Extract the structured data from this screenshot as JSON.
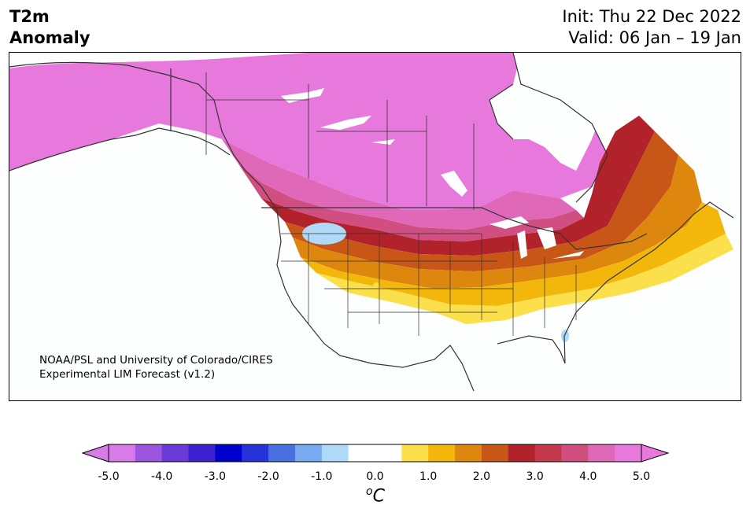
{
  "header": {
    "left_line1": "T2m",
    "left_line2": "Anomaly",
    "init": "Init: Thu 22 Dec 2022",
    "valid": "Valid: 06 Jan – 19 Jan"
  },
  "credit": {
    "line1": "NOAA/PSL and University of Colorado/CIRES",
    "line2": "Experimental LIM Forecast (v1.2)"
  },
  "colorbar": {
    "unit_base": "C",
    "unit_prefix": "o",
    "ticks": [
      "-5.0",
      "-4.0",
      "-3.0",
      "-2.0",
      "-1.0",
      "0.0",
      "1.0",
      "2.0",
      "3.0",
      "4.0",
      "5.0"
    ],
    "colors": [
      "#d77be8",
      "#9b55de",
      "#6a3ad8",
      "#3a20cf",
      "#0000cc",
      "#2633d9",
      "#4a6fe0",
      "#78aaf0",
      "#aedaf8",
      "#ffffff",
      "#ffffff",
      "#fbe04c",
      "#f2b70a",
      "#de870f",
      "#c85617",
      "#b1222a",
      "#c3384a",
      "#d14e80",
      "#df69b8",
      "#e778dc"
    ],
    "under_color": "#d77be8",
    "over_color": "#e778dc"
  },
  "map": {
    "ocean_color": "#fdfefe",
    "land_outline_color": "#333333"
  }
}
